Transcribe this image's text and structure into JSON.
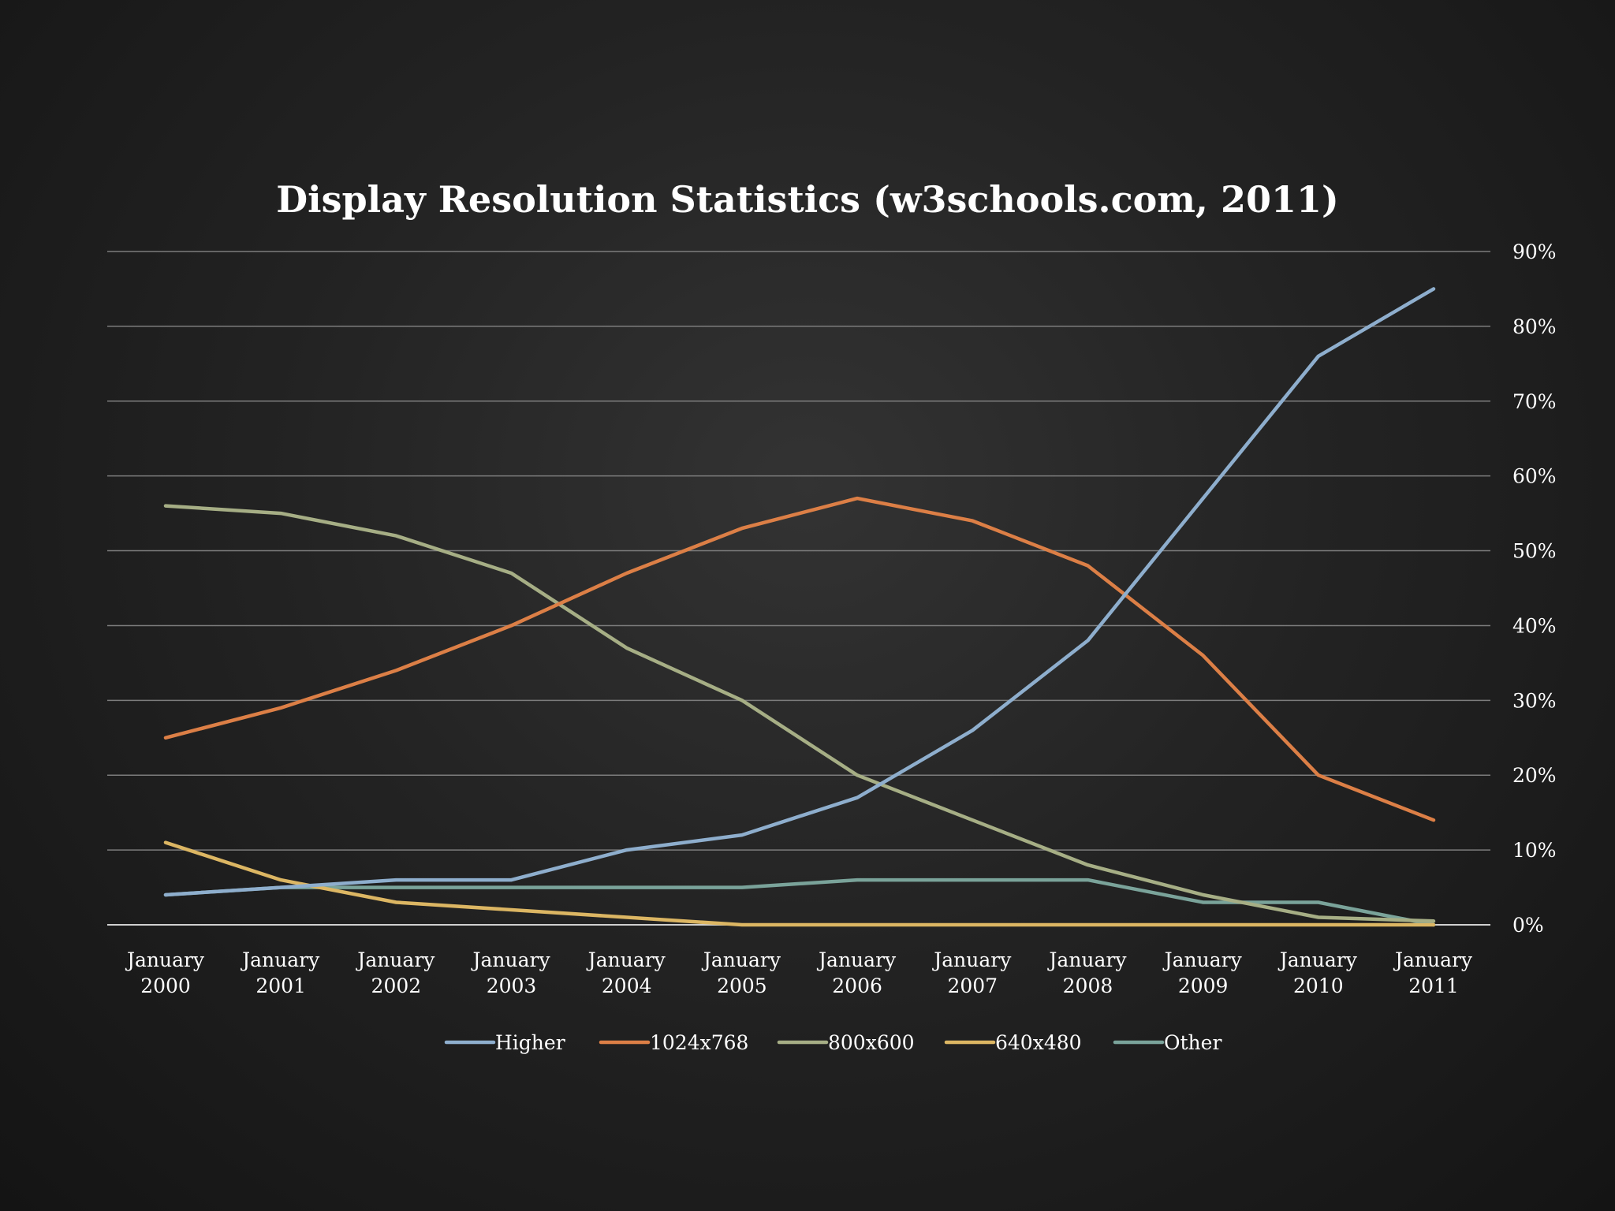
{
  "chart_data": {
    "type": "line",
    "title": "Display Resolution Statistics (w3schools.com, 2011)",
    "categories": [
      "January 2000",
      "January 2001",
      "January 2002",
      "January 2003",
      "January 2004",
      "January 2005",
      "January 2006",
      "January 2007",
      "January 2008",
      "January 2009",
      "January 2010",
      "January 2011"
    ],
    "y_ticks": [
      "0%",
      "10%",
      "20%",
      "30%",
      "40%",
      "50%",
      "60%",
      "70%",
      "80%",
      "90%"
    ],
    "ylim": [
      0,
      90
    ],
    "y_axis_side": "right",
    "grid": true,
    "legend_position": "bottom",
    "series": [
      {
        "name": "Higher",
        "color": "#8eaecd",
        "values": [
          4,
          5,
          6,
          6,
          10,
          12,
          17,
          26,
          38,
          57,
          76,
          85
        ]
      },
      {
        "name": "1024x768",
        "color": "#dc7f46",
        "values": [
          25,
          29,
          34,
          40,
          47,
          53,
          57,
          54,
          48,
          36,
          20,
          14
        ]
      },
      {
        "name": "800x600",
        "color": "#a6ae85",
        "values": [
          56,
          55,
          52,
          47,
          37,
          30,
          20,
          14,
          8,
          4,
          1,
          0.5
        ]
      },
      {
        "name": "640x480",
        "color": "#dcb663",
        "values": [
          11,
          6,
          3,
          2,
          1,
          0,
          0,
          0,
          0,
          0,
          0,
          0
        ]
      },
      {
        "name": "Other",
        "color": "#7aa39a",
        "values": [
          4,
          5,
          5,
          5,
          5,
          5,
          6,
          6,
          6,
          3,
          3,
          0
        ]
      }
    ]
  }
}
